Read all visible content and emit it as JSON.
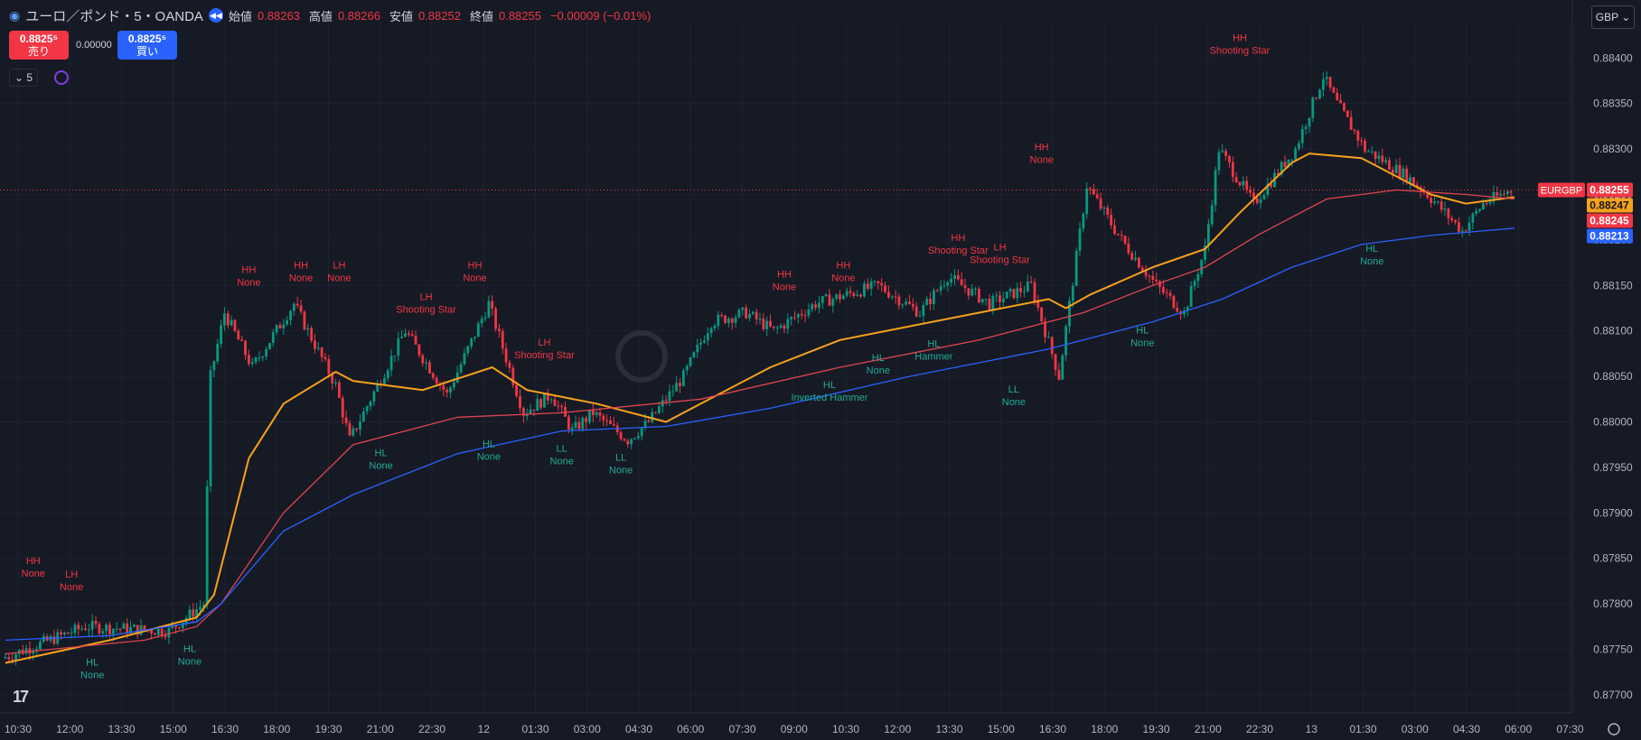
{
  "header": {
    "symbol": "ユーロ／ポンド・5・OANDA",
    "open_label": "始値",
    "open": "0.88263",
    "high_label": "高値",
    "high": "0.88266",
    "low_label": "安値",
    "low": "0.88252",
    "close_label": "終値",
    "close": "0.88255",
    "change": "−0.00009 (−0.01%)"
  },
  "trade": {
    "sell_price": "0.8825⁵",
    "sell_label": "売り",
    "buy_price": "0.8825⁵",
    "buy_label": "買い",
    "spread": "0.00000"
  },
  "interval": "5",
  "currency": "GBP",
  "colors": {
    "up": "#089981",
    "down": "#f23645",
    "ema_fast": "#f7a21b",
    "ema_mid": "#e0454f",
    "ema_slow": "#2962ff",
    "bg": "#161a25",
    "grid": "#1e2230"
  },
  "chart_data": {
    "type": "line",
    "symbol_label": "EURGBP",
    "ylim": [
      0.8768,
      0.8844
    ],
    "yticks": [
      0.884,
      0.8835,
      0.883,
      0.8825,
      0.882,
      0.8815,
      0.881,
      0.8805,
      0.88,
      0.8795,
      0.879,
      0.8785,
      0.878,
      0.8775,
      0.877
    ],
    "ytick_labels": [
      "0.88400",
      "0.88350",
      "0.88300",
      "0.88250",
      "0.88200",
      "0.88150",
      "0.88100",
      "0.88050",
      "0.88000",
      "0.87950",
      "0.87900",
      "0.87850",
      "0.87800",
      "0.87750",
      "0.87700"
    ],
    "xtick_labels": [
      "10:30",
      "12:00",
      "13:30",
      "15:00",
      "16:30",
      "18:00",
      "19:30",
      "21:00",
      "22:30",
      "12",
      "01:30",
      "03:00",
      "04:30",
      "06:00",
      "07:30",
      "09:00",
      "10:30",
      "12:00",
      "13:30",
      "15:00",
      "16:30",
      "18:00",
      "19:30",
      "21:00",
      "22:30",
      "13",
      "01:30",
      "03:00",
      "04:30",
      "06:00",
      "07:30"
    ],
    "bars_total": 434,
    "price_x": [
      0,
      24,
      48,
      58,
      60,
      64,
      72,
      84,
      96,
      100,
      108,
      116,
      128,
      140,
      150,
      158,
      164,
      170,
      180,
      186,
      196,
      204,
      214,
      222,
      234,
      252,
      264,
      272,
      284,
      296,
      304,
      312,
      322,
      332,
      340,
      346,
      350,
      360,
      372,
      380,
      384,
      392,
      404,
      410,
      420,
      426,
      434
    ],
    "price_y": [
      0.8774,
      0.87775,
      0.8777,
      0.878,
      0.8805,
      0.8812,
      0.8806,
      0.8813,
      0.8804,
      0.8798,
      0.8804,
      0.881,
      0.8803,
      0.8813,
      0.8801,
      0.8803,
      0.8799,
      0.8801,
      0.8798,
      0.88,
      0.8805,
      0.8811,
      0.8812,
      0.881,
      0.8813,
      0.8815,
      0.8812,
      0.8816,
      0.8813,
      0.8815,
      0.8805,
      0.8826,
      0.882,
      0.8815,
      0.8812,
      0.8819,
      0.883,
      0.8824,
      0.883,
      0.8838,
      0.8835,
      0.883,
      0.8827,
      0.8825,
      0.8821,
      0.8824,
      0.88255
    ],
    "series": [
      {
        "name": "EURGBP",
        "last": "0.88255",
        "color": "#f23645",
        "x": [
          0,
          24,
          48,
          58,
          60,
          64,
          72,
          84,
          96,
          100,
          108,
          116,
          128,
          140,
          150,
          158,
          164,
          170,
          180,
          186,
          196,
          204,
          214,
          222,
          234,
          252,
          264,
          272,
          284,
          296,
          304,
          312,
          322,
          332,
          340,
          346,
          350,
          360,
          372,
          380,
          384,
          392,
          404,
          410,
          420,
          426,
          434
        ],
        "y": [
          0.8774,
          0.87775,
          0.8777,
          0.878,
          0.8805,
          0.8812,
          0.8806,
          0.8813,
          0.8804,
          0.8798,
          0.8804,
          0.881,
          0.8803,
          0.8813,
          0.8801,
          0.8803,
          0.8799,
          0.8801,
          0.8798,
          0.88,
          0.8805,
          0.8811,
          0.8812,
          0.881,
          0.8813,
          0.8815,
          0.8812,
          0.8816,
          0.8813,
          0.8815,
          0.8805,
          0.8826,
          0.882,
          0.8815,
          0.8812,
          0.8819,
          0.883,
          0.8824,
          0.883,
          0.8838,
          0.8835,
          0.883,
          0.8827,
          0.8825,
          0.8821,
          0.8824,
          0.88255
        ]
      },
      {
        "name": "",
        "last": "0.88247",
        "color": "#f7a21b",
        "x": [
          0,
          30,
          55,
          60,
          70,
          80,
          95,
          100,
          120,
          140,
          150,
          170,
          190,
          200,
          220,
          240,
          260,
          280,
          300,
          305,
          312,
          330,
          345,
          355,
          370,
          375,
          390,
          410,
          420,
          434
        ],
        "y": [
          0.87735,
          0.8776,
          0.87785,
          0.8781,
          0.8796,
          0.8802,
          0.88055,
          0.88045,
          0.88035,
          0.8806,
          0.88035,
          0.8802,
          0.88,
          0.8802,
          0.8806,
          0.8809,
          0.88105,
          0.8812,
          0.88135,
          0.88125,
          0.8814,
          0.8817,
          0.8819,
          0.8823,
          0.88285,
          0.88295,
          0.8829,
          0.8825,
          0.8824,
          0.88247
        ]
      },
      {
        "name": "",
        "last": "0.88245",
        "color": "#e0454f",
        "x": [
          0,
          40,
          55,
          62,
          80,
          100,
          130,
          160,
          200,
          240,
          280,
          310,
          330,
          345,
          360,
          380,
          400,
          420,
          434
        ],
        "y": [
          0.87745,
          0.8776,
          0.87775,
          0.878,
          0.879,
          0.87975,
          0.88005,
          0.8801,
          0.88025,
          0.8806,
          0.8809,
          0.8812,
          0.8815,
          0.8817,
          0.88205,
          0.88245,
          0.88255,
          0.8825,
          0.88245
        ]
      },
      {
        "name": "",
        "last": "0.88213",
        "color": "#2962ff",
        "x": [
          0,
          30,
          55,
          62,
          80,
          100,
          130,
          160,
          190,
          220,
          260,
          300,
          330,
          350,
          370,
          390,
          410,
          434
        ],
        "y": [
          0.8776,
          0.87765,
          0.8778,
          0.878,
          0.8788,
          0.8792,
          0.87965,
          0.8799,
          0.87995,
          0.88015,
          0.8805,
          0.8808,
          0.8811,
          0.88135,
          0.8817,
          0.88195,
          0.88205,
          0.88213
        ]
      }
    ],
    "annotations": [
      {
        "x": 8,
        "y": 0.8781,
        "pos": "above",
        "line1": "HH",
        "line2": "None"
      },
      {
        "x": 19,
        "y": 0.87795,
        "pos": "above",
        "line1": "LH",
        "line2": "None"
      },
      {
        "x": 25,
        "y": 0.8775,
        "pos": "below",
        "line1": "HL",
        "line2": "None"
      },
      {
        "x": 53,
        "y": 0.87765,
        "pos": "below",
        "line1": "HL",
        "line2": "None"
      },
      {
        "x": 70,
        "y": 0.8813,
        "pos": "above",
        "line1": "HH",
        "line2": "None"
      },
      {
        "x": 85,
        "y": 0.88135,
        "pos": "above",
        "line1": "HH",
        "line2": "None"
      },
      {
        "x": 96,
        "y": 0.88135,
        "pos": "above",
        "line1": "LH",
        "line2": "None"
      },
      {
        "x": 108,
        "y": 0.8798,
        "pos": "below",
        "line1": "HL",
        "line2": "None"
      },
      {
        "x": 121,
        "y": 0.881,
        "pos": "above",
        "line1": "LH",
        "line2": "Shooting Star"
      },
      {
        "x": 135,
        "y": 0.88135,
        "pos": "above",
        "line1": "HH",
        "line2": "None"
      },
      {
        "x": 139,
        "y": 0.8799,
        "pos": "below",
        "line1": "HL",
        "line2": "None"
      },
      {
        "x": 155,
        "y": 0.8805,
        "pos": "above",
        "line1": "LH",
        "line2": "Shooting Star"
      },
      {
        "x": 160,
        "y": 0.87985,
        "pos": "below",
        "line1": "LL",
        "line2": "None"
      },
      {
        "x": 177,
        "y": 0.87975,
        "pos": "below",
        "line1": "LL",
        "line2": "None"
      },
      {
        "x": 224,
        "y": 0.88125,
        "pos": "above",
        "line1": "HH",
        "line2": "None"
      },
      {
        "x": 237,
        "y": 0.88055,
        "pos": "below",
        "line1": "HL",
        "line2": "Inverted Hammer"
      },
      {
        "x": 241,
        "y": 0.88135,
        "pos": "above",
        "line1": "HH",
        "line2": "None"
      },
      {
        "x": 251,
        "y": 0.88085,
        "pos": "below",
        "line1": "HL",
        "line2": "None"
      },
      {
        "x": 267,
        "y": 0.881,
        "pos": "below",
        "line1": "HL",
        "line2": "Hammer"
      },
      {
        "x": 274,
        "y": 0.88165,
        "pos": "above",
        "line1": "HH",
        "line2": "Shooting Star"
      },
      {
        "x": 286,
        "y": 0.88155,
        "pos": "above",
        "line1": "LH",
        "line2": "Shooting Star"
      },
      {
        "x": 290,
        "y": 0.8805,
        "pos": "below",
        "line1": "LL",
        "line2": "None"
      },
      {
        "x": 298,
        "y": 0.88265,
        "pos": "above",
        "line1": "HH",
        "line2": "None"
      },
      {
        "x": 327,
        "y": 0.88115,
        "pos": "below",
        "line1": "HL",
        "line2": "None"
      },
      {
        "x": 355,
        "y": 0.88385,
        "pos": "above",
        "line1": "HH",
        "line2": "Shooting Star"
      },
      {
        "x": 393,
        "y": 0.88205,
        "pos": "below",
        "line1": "HL",
        "line2": "None"
      }
    ],
    "grid": true,
    "legend": "none"
  }
}
